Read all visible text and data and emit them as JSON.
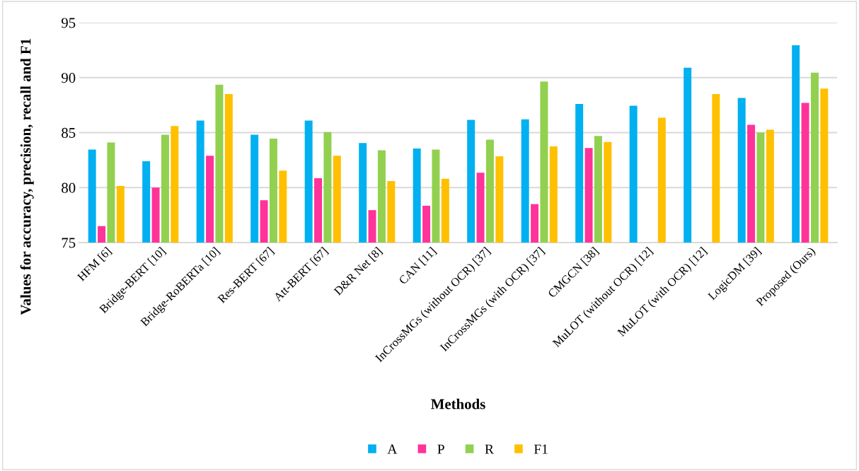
{
  "chart_data": {
    "type": "bar",
    "xlabel": "Methods",
    "ylabel": "Values for accuracy, precision, recall and F1",
    "categories": [
      "HFM [6]",
      "Bridge-BERT [10]",
      "Bridge-RoBERTa [10]",
      "Res-BERT [67]",
      "Att-BERT [67]",
      "D&R Net [8]",
      "CAN [11]",
      "InCrossMGs (without OCR) [37]",
      "InCrossMGs (with OCR) [37]",
      "CMGCN [38]",
      "MuLOT (without OCR) [12]",
      "MuLOT (with OCR) [12]",
      "LogicDM [39]",
      "Proposed (Ours)"
    ],
    "series": [
      {
        "name": "A",
        "color": "#00b0f0",
        "values": [
          83.45,
          82.4,
          86.1,
          84.8,
          86.1,
          84.05,
          83.55,
          86.15,
          86.2,
          87.6,
          87.45,
          90.9,
          88.15,
          92.95
        ]
      },
      {
        "name": "P",
        "color": "#ff3399",
        "values": [
          76.5,
          80.0,
          82.9,
          78.85,
          80.85,
          77.95,
          78.35,
          81.35,
          78.5,
          83.6,
          null,
          null,
          85.7,
          87.7
        ]
      },
      {
        "name": "R",
        "color": "#92d050",
        "values": [
          84.1,
          84.8,
          89.35,
          84.45,
          85.05,
          83.4,
          83.45,
          84.35,
          89.65,
          84.7,
          null,
          null,
          85.0,
          90.45
        ]
      },
      {
        "name": "F1",
        "color": "#ffc000",
        "values": [
          80.15,
          85.6,
          88.5,
          81.55,
          82.9,
          80.6,
          80.8,
          82.85,
          83.75,
          84.15,
          86.35,
          88.5,
          85.25,
          89.0
        ]
      }
    ],
    "ylim": [
      75,
      95
    ],
    "yticks": [
      75,
      80,
      85,
      90,
      95
    ],
    "grid": "y",
    "legend": "bottom"
  }
}
